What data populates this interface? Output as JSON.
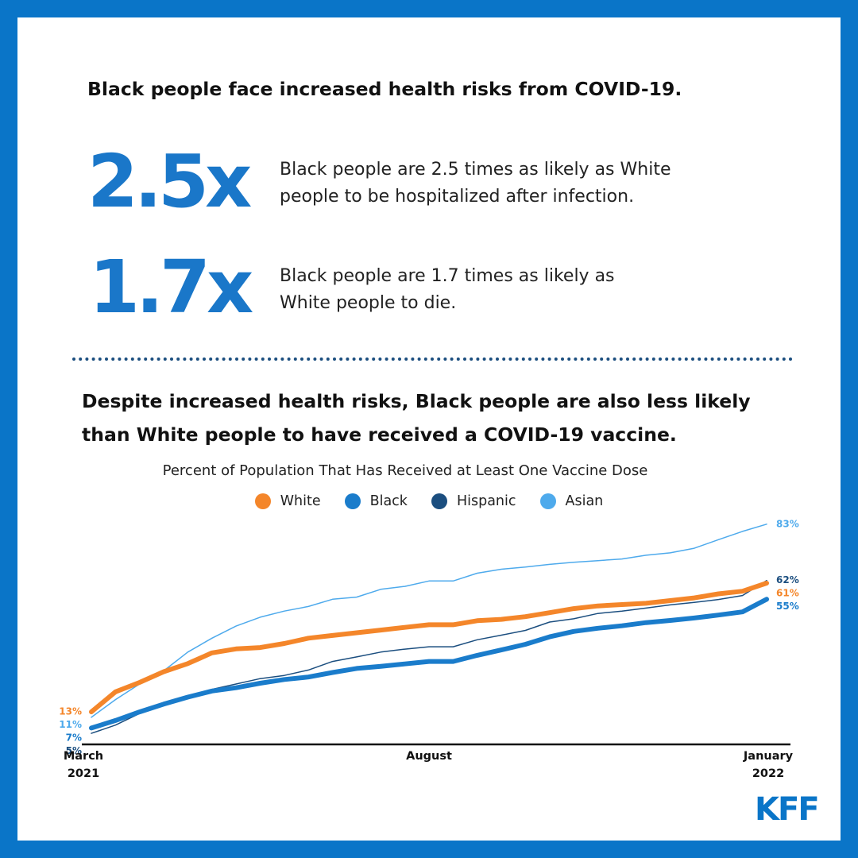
{
  "header": {
    "title": "Black people face increased health risks from COVID-19."
  },
  "stats": [
    {
      "figure": "2.5x",
      "text": "Black people are 2.5 times as likely as White\npeople to be hospitalized after infection."
    },
    {
      "figure": "1.7x",
      "text": "Black people are 1.7 times as likely as\nWhite people to die."
    }
  ],
  "section_title": "Despite increased health risks, Black people are also less likely\nthan White people to have received a COVID-19 vaccine.",
  "chart_data": {
    "type": "line",
    "title": "Percent of Population That Has Received at Least One Vaccine Dose",
    "categories": [
      "March\n2021",
      null,
      null,
      null,
      null,
      null,
      null,
      null,
      null,
      null,
      null,
      null,
      null,
      null,
      "August",
      null,
      null,
      null,
      null,
      null,
      null,
      null,
      null,
      null,
      null,
      null,
      null,
      null,
      "January\n2022"
    ],
    "ylim": [
      0,
      85
    ],
    "legend": "top",
    "series": [
      {
        "name": "White",
        "color": "#f4862a",
        "width": 6,
        "values": [
          13,
          20.5,
          24,
          28,
          31,
          35,
          36.5,
          37,
          38.5,
          40.5,
          41.5,
          42.5,
          43.5,
          44.5,
          45.5,
          45.5,
          47,
          47.5,
          48.5,
          50,
          51.5,
          52.5,
          53,
          53.5,
          54.5,
          55.5,
          57,
          58,
          61
        ],
        "value_labels": [
          "13%",
          null,
          null,
          null,
          null,
          null,
          null,
          null,
          null,
          null,
          null,
          null,
          null,
          null,
          null,
          null,
          null,
          null,
          null,
          null,
          null,
          null,
          null,
          null,
          null,
          null,
          null,
          null,
          "61%"
        ]
      },
      {
        "name": "Black",
        "color": "#1a7ccb",
        "width": 6,
        "values": [
          7,
          9.8,
          13,
          15.9,
          18.5,
          20.8,
          22,
          23.7,
          25.1,
          26,
          27.7,
          29.2,
          30,
          30.9,
          31.8,
          31.8,
          34.1,
          36.1,
          38.2,
          41,
          43,
          44.2,
          45.1,
          46.3,
          47.1,
          48,
          49.1,
          50.3,
          55
        ],
        "value_labels": [
          "7%",
          null,
          null,
          null,
          null,
          null,
          null,
          null,
          null,
          null,
          null,
          null,
          null,
          null,
          null,
          null,
          null,
          null,
          null,
          null,
          null,
          null,
          null,
          null,
          null,
          null,
          null,
          null,
          "55%"
        ]
      },
      {
        "name": "Hispanic",
        "color": "#1b4e7f",
        "width": 1.5,
        "values": [
          5,
          8.1,
          12.4,
          16.2,
          18.5,
          21.4,
          23.4,
          25.4,
          26.6,
          28.6,
          31.8,
          33.5,
          35.3,
          36.4,
          37.3,
          37.3,
          39.9,
          41.6,
          43.4,
          46.5,
          47.7,
          49.7,
          50.6,
          51.7,
          52.9,
          53.8,
          54.9,
          56.4,
          62
        ],
        "value_labels": [
          "5%",
          null,
          null,
          null,
          null,
          null,
          null,
          null,
          null,
          null,
          null,
          null,
          null,
          null,
          null,
          null,
          null,
          null,
          null,
          null,
          null,
          null,
          null,
          null,
          null,
          null,
          null,
          null,
          "62%"
        ]
      },
      {
        "name": "Asian",
        "color": "#4eaaec",
        "width": 1.5,
        "values": [
          11,
          17.6,
          23.4,
          28.3,
          35.3,
          40.5,
          45,
          48.3,
          50.6,
          52.3,
          55,
          55.8,
          58.7,
          59.8,
          61.8,
          61.8,
          64.7,
          66.2,
          67,
          68,
          68.8,
          69.4,
          70,
          71.4,
          72.3,
          74,
          77.2,
          80.3,
          83
        ],
        "value_labels": [
          "11%",
          null,
          null,
          null,
          null,
          null,
          null,
          null,
          null,
          null,
          null,
          null,
          null,
          null,
          null,
          null,
          null,
          null,
          null,
          null,
          null,
          null,
          null,
          null,
          null,
          null,
          null,
          null,
          "83%"
        ]
      }
    ]
  },
  "logo": "KFF"
}
